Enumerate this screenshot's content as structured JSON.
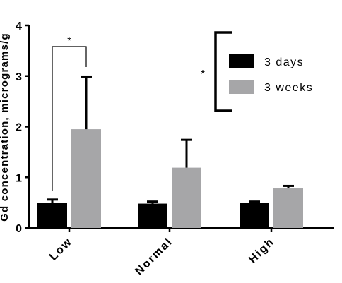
{
  "chart_data": {
    "type": "bar",
    "ylabel": "Gd concentration, micrograms/g",
    "ylim": [
      0,
      4
    ],
    "yticks": [
      "0",
      "1",
      "2",
      "3",
      "4"
    ],
    "categories": [
      "Low",
      "Normal",
      "High"
    ],
    "series": [
      {
        "name": "3 days",
        "color": "#000000",
        "values": [
          0.5,
          0.48,
          0.5
        ],
        "errors": [
          0.06,
          0.04,
          0.02
        ]
      },
      {
        "name": "3 weeks",
        "color": "#a6a6a8",
        "values": [
          1.95,
          1.19,
          0.78
        ],
        "errors": [
          1.04,
          0.55,
          0.05
        ]
      }
    ],
    "legend": {
      "position": "top-right"
    },
    "annotations": [
      {
        "text": "*",
        "type": "bracket",
        "target": "Low: 3 days vs 3 weeks"
      },
      {
        "text": "*",
        "type": "bracket",
        "target": "legend: 3 days vs 3 weeks"
      }
    ]
  }
}
